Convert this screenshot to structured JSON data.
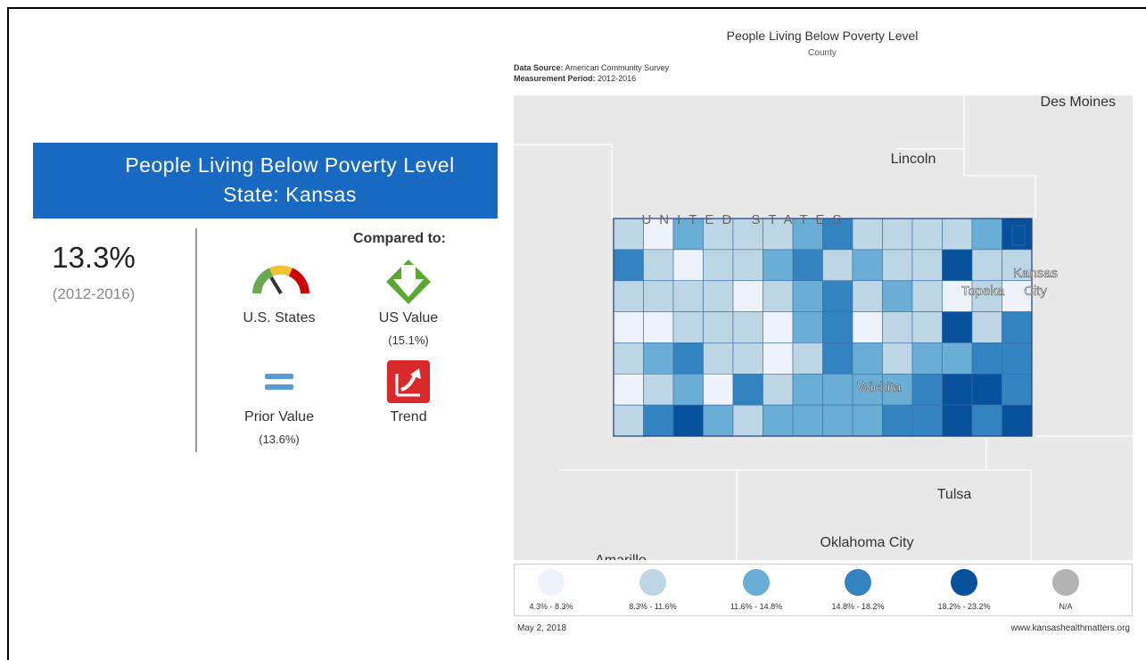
{
  "left_panel": {
    "header": {
      "title": "People Living Below Poverty Level",
      "subtitle": "State: Kansas"
    },
    "value": "13.3%",
    "period": "(2012-2016)",
    "compared_to": "Compared to:",
    "comparisons": [
      {
        "label": "U.S. States"
      },
      {
        "label": "US Value",
        "detail": "(15.1%)"
      },
      {
        "label": "Prior Value",
        "detail": "(13.6%)"
      },
      {
        "label": "Trend"
      }
    ]
  },
  "map": {
    "title": "People Living Below Poverty Level",
    "subtitle": "County",
    "data_source_label": "Data Source:",
    "data_source": "American Community Survey",
    "measurement_period_label": "Measurement Period:",
    "measurement_period": "2012-2016",
    "places": [
      "Des Moines",
      "Lincoln",
      "UNITED STATES",
      "Topeka",
      "Kansas",
      "City",
      "Wichita",
      "Tulsa",
      "Oklahoma City",
      "Amarillo"
    ],
    "legend": [
      {
        "label": "4.3% - 8.3%",
        "color": "#eef3fb"
      },
      {
        "label": "8.3% - 11.6%",
        "color": "#bcd6e6"
      },
      {
        "label": "11.6% - 14.8%",
        "color": "#6aaed6"
      },
      {
        "label": "14.8% - 18.2%",
        "color": "#3383c0"
      },
      {
        "label": "18.2% - 23.2%",
        "color": "#08519c"
      },
      {
        "label": "N/A",
        "color": "#b3b3b3"
      }
    ]
  },
  "footer": {
    "date": "May 2, 2018",
    "url": "www.kansashealthmatters.org"
  }
}
